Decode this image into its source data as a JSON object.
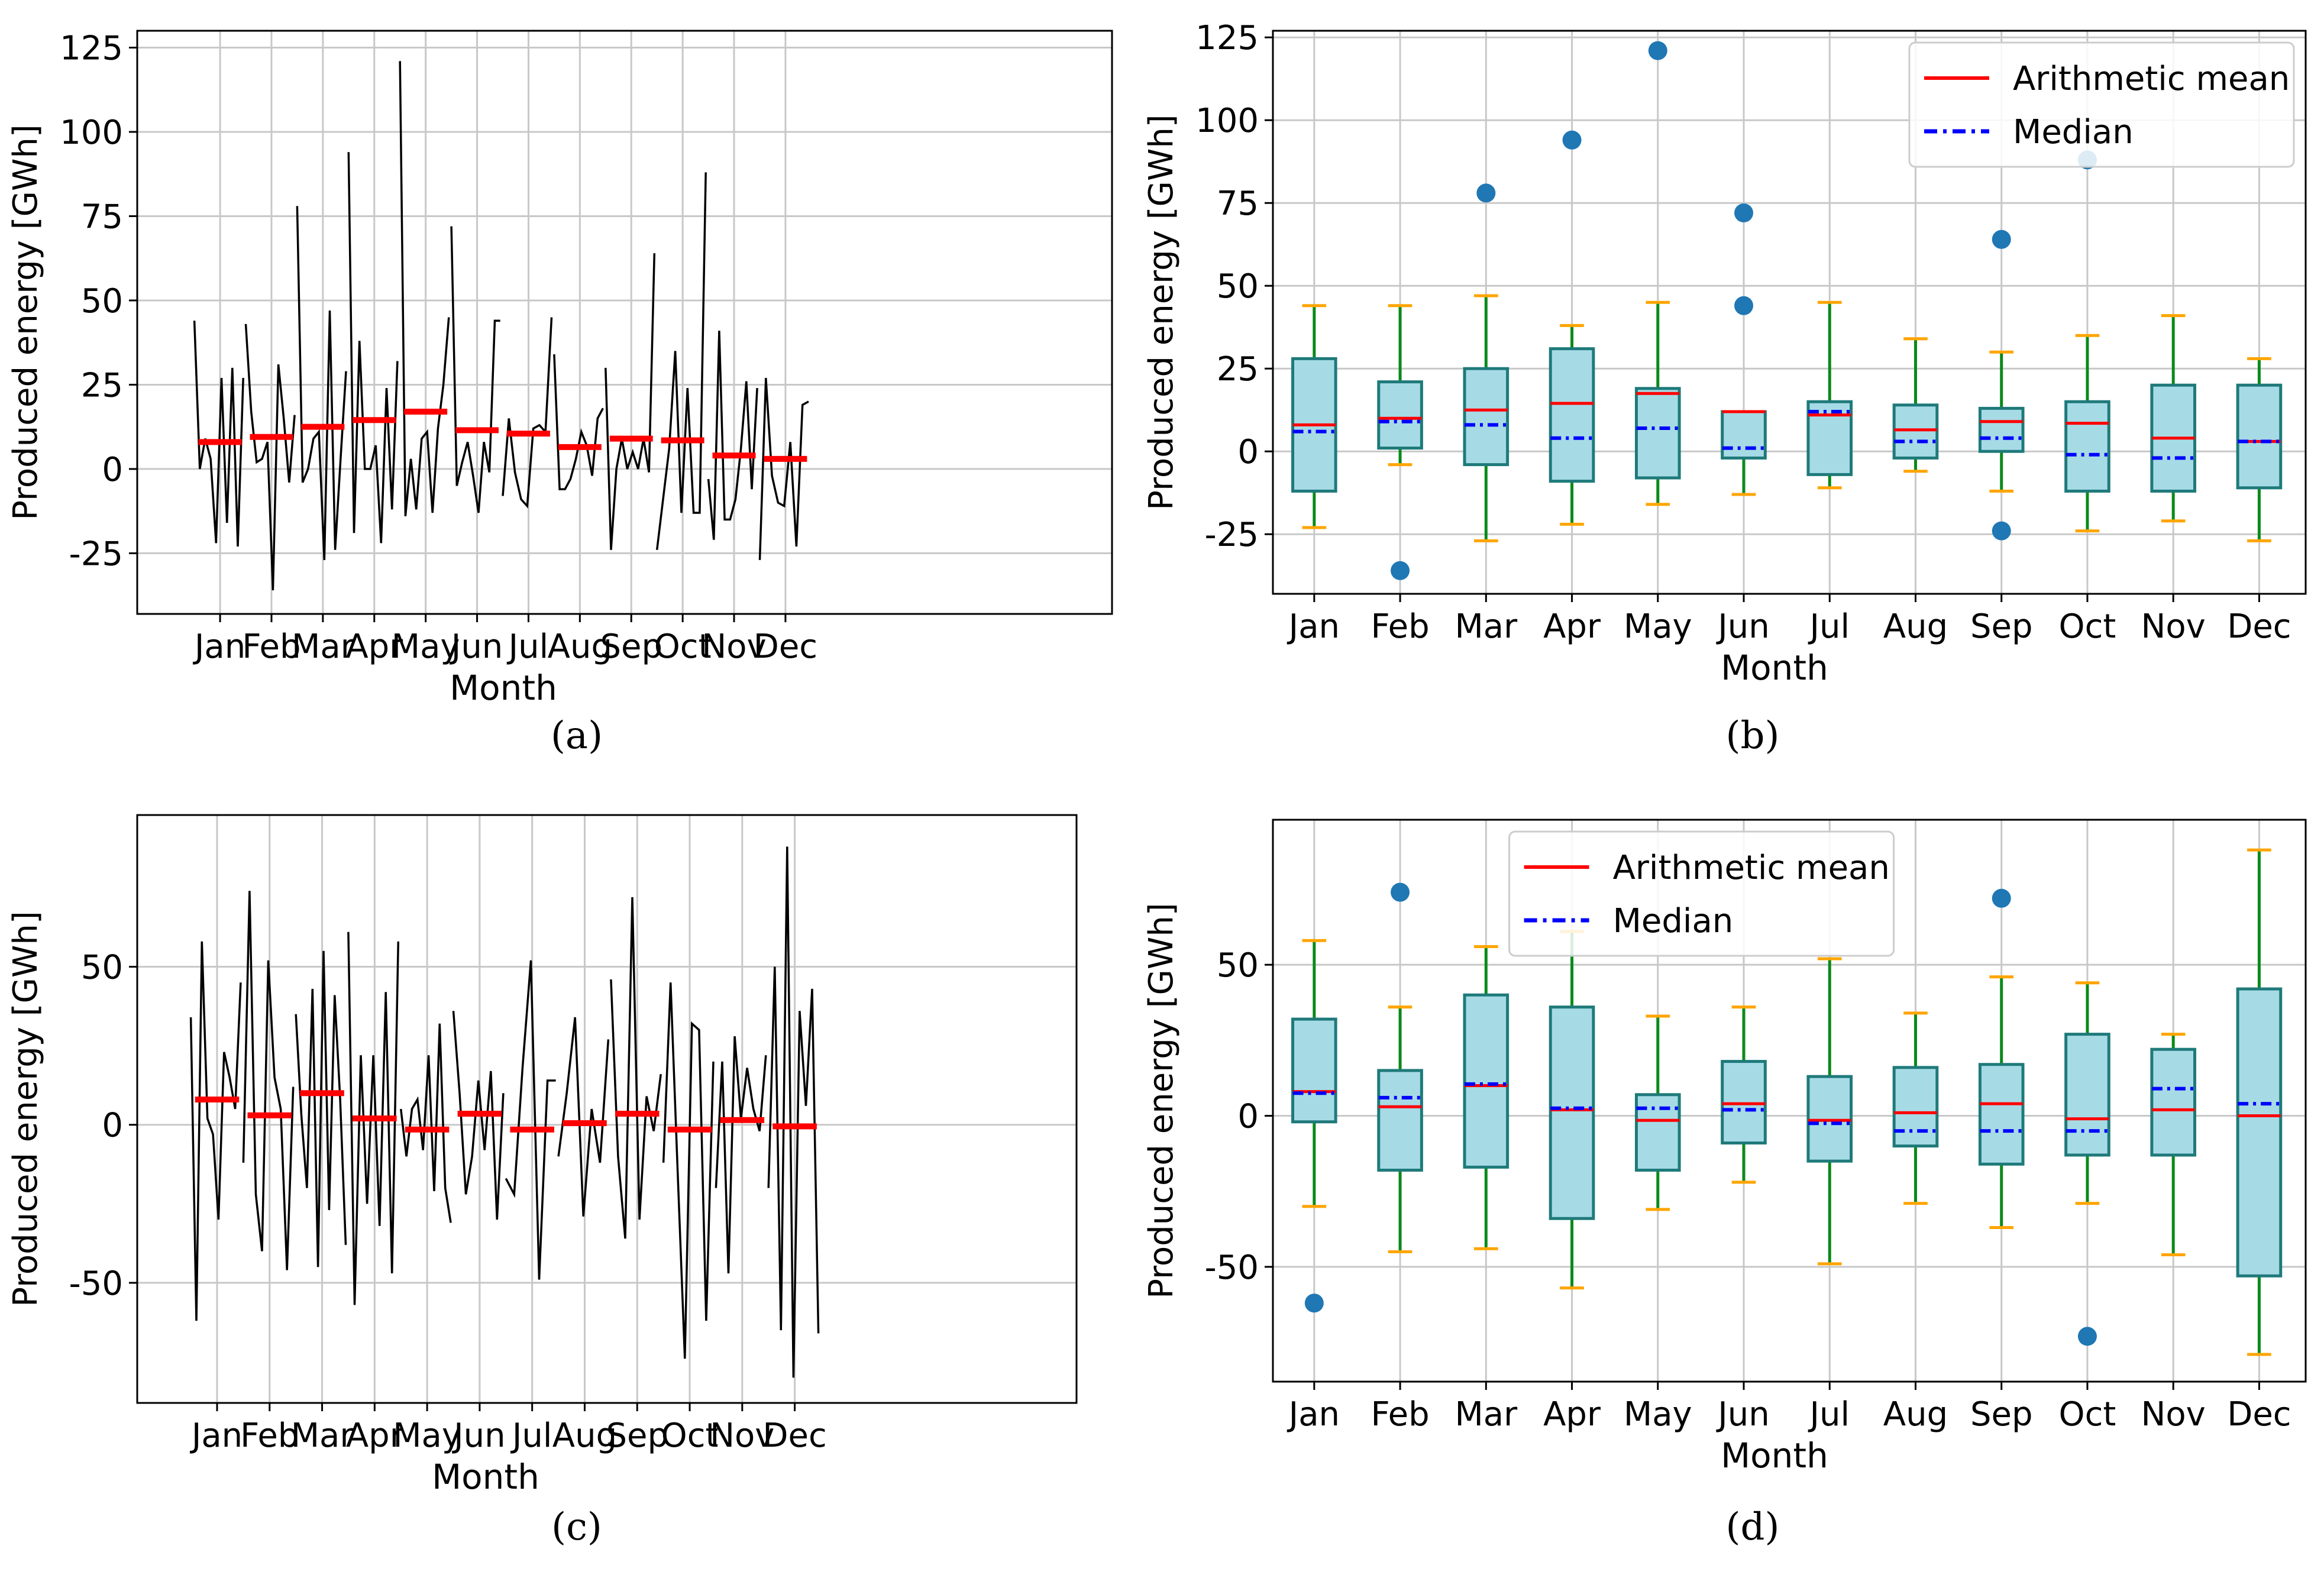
{
  "colors": {
    "series_line": "#000000",
    "mean": "#ff0000",
    "median": "#0000ff",
    "box_fill": "#a6dbe6",
    "box_edge": "#1f7a7a",
    "whisker": "#0a8a1a",
    "cap": "#ffa500",
    "outlier": "#1f77b4",
    "grid": "#c8c8c8"
  },
  "chart_data": [
    {
      "panel": "(a)",
      "type": "line",
      "xlabel": "Month",
      "ylabel": "Produced energy [GWh]",
      "ylim": [
        -43,
        130
      ],
      "yticks": [
        -25,
        0,
        25,
        50,
        75,
        100,
        125
      ],
      "categories": [
        "Jan",
        "Feb",
        "Mar",
        "Apr",
        "May",
        "Jun",
        "Jul",
        "Aug",
        "Sep",
        "Oct",
        "Nov",
        "Dec"
      ],
      "monthly_series": [
        [
          44,
          0,
          9,
          3,
          -22,
          27,
          -16,
          30,
          -23,
          27
        ],
        [
          43,
          17,
          2,
          3,
          8,
          -36,
          31,
          15,
          -4,
          16
        ],
        [
          78,
          -4,
          0,
          9,
          11,
          -27,
          47,
          -24,
          3,
          29
        ],
        [
          94,
          -19,
          38,
          0,
          0,
          7,
          -22,
          24,
          -12,
          32
        ],
        [
          121,
          -14,
          3,
          -12,
          9,
          11,
          -13,
          12,
          25,
          45
        ],
        [
          72,
          -5,
          2,
          8,
          -2,
          -13,
          8,
          -1,
          44,
          44
        ],
        [
          -8,
          15,
          -1,
          -9,
          -11,
          12,
          13,
          11,
          45
        ],
        [
          34,
          -6,
          -6,
          -3,
          3,
          11,
          7,
          -2,
          15,
          18
        ],
        [
          30,
          -24,
          0,
          9,
          0,
          5,
          0,
          9,
          -1,
          64
        ],
        [
          -24,
          -9,
          6,
          35,
          -13,
          24,
          -13,
          -13,
          88
        ],
        [
          -3,
          -21,
          41,
          -15,
          -15,
          -9,
          6,
          26,
          -6,
          24
        ],
        [
          -27,
          27,
          -2,
          -10,
          -11,
          8,
          -23,
          19,
          20
        ]
      ],
      "means": [
        8,
        9.5,
        12.5,
        14.5,
        17,
        11.5,
        10.5,
        6.5,
        9,
        8.5,
        4,
        3
      ]
    },
    {
      "panel": "(b)",
      "type": "box",
      "xlabel": "Month",
      "ylabel": "Produced energy [GWh]",
      "ylim": [
        -43,
        127
      ],
      "yticks": [
        -25,
        0,
        25,
        50,
        75,
        100,
        125
      ],
      "categories": [
        "Jan",
        "Feb",
        "Mar",
        "Apr",
        "May",
        "Jun",
        "Jul",
        "Aug",
        "Sep",
        "Oct",
        "Nov",
        "Dec"
      ],
      "legend": [
        "Arithmetic mean",
        "Median"
      ],
      "legend_position": "top-right",
      "boxes": [
        {
          "q1": -12,
          "q3": 28,
          "median": 6,
          "mean": 8,
          "lo": -23,
          "hi": 44,
          "outliers": []
        },
        {
          "q1": 1,
          "q3": 21,
          "median": 9,
          "mean": 10,
          "lo": -4,
          "hi": 44,
          "outliers": [
            -36
          ]
        },
        {
          "q1": -4,
          "q3": 25,
          "median": 8,
          "mean": 12.5,
          "lo": -27,
          "hi": 47,
          "outliers": [
            78
          ]
        },
        {
          "q1": -9,
          "q3": 31,
          "median": 4,
          "mean": 14.5,
          "lo": -22,
          "hi": 38,
          "outliers": [
            94
          ]
        },
        {
          "q1": -8,
          "q3": 19,
          "median": 7,
          "mean": 17.5,
          "lo": -16,
          "hi": 45,
          "outliers": [
            121
          ]
        },
        {
          "q1": -2,
          "q3": 12,
          "median": 1,
          "mean": 12,
          "lo": -13,
          "hi": 12,
          "outliers": [
            72,
            44
          ]
        },
        {
          "q1": -7,
          "q3": 15,
          "median": 12,
          "mean": 11,
          "lo": -11,
          "hi": 45,
          "outliers": []
        },
        {
          "q1": -2,
          "q3": 14,
          "median": 3,
          "mean": 6.5,
          "lo": -6,
          "hi": 34,
          "outliers": []
        },
        {
          "q1": 0,
          "q3": 13,
          "median": 4,
          "mean": 9,
          "lo": -12,
          "hi": 30,
          "outliers": [
            64,
            -24
          ]
        },
        {
          "q1": -12,
          "q3": 15,
          "median": -1,
          "mean": 8.5,
          "lo": -24,
          "hi": 35,
          "outliers": [
            88
          ]
        },
        {
          "q1": -12,
          "q3": 20,
          "median": -2,
          "mean": 4,
          "lo": -21,
          "hi": 41,
          "outliers": []
        },
        {
          "q1": -11,
          "q3": 20,
          "median": 3,
          "mean": 3,
          "lo": -27,
          "hi": 28,
          "outliers": []
        }
      ]
    },
    {
      "panel": "(c)",
      "type": "line",
      "xlabel": "Month",
      "ylabel": "Produced energy [GWh]",
      "ylim": [
        -88,
        98
      ],
      "yticks": [
        -50,
        0,
        50
      ],
      "categories": [
        "Jan",
        "Feb",
        "Mar",
        "Apr",
        "May",
        "Jun",
        "Jul",
        "Aug",
        "Sep",
        "Oct",
        "Nov",
        "Dec"
      ],
      "monthly_series": [
        [
          34,
          -62,
          58,
          2,
          -3,
          -30,
          23,
          15,
          5,
          45
        ],
        [
          -12,
          74,
          -22,
          -40,
          52,
          15,
          5,
          -46,
          12
        ],
        [
          35,
          3,
          -20,
          43,
          -45,
          55,
          -27,
          41,
          8,
          -38
        ],
        [
          61,
          -57,
          22,
          -25,
          22,
          -32,
          42,
          -47,
          58
        ],
        [
          5,
          -10,
          5,
          8,
          -8,
          22,
          -21,
          32,
          -20,
          -31
        ],
        [
          36,
          10,
          -22,
          -10,
          14,
          -8,
          17,
          -30,
          10
        ],
        [
          -17,
          -22,
          18,
          52,
          -49,
          14,
          14
        ],
        [
          -10,
          10,
          34,
          -29,
          5,
          -12,
          27
        ],
        [
          46,
          -10,
          -36,
          72,
          -30,
          9,
          -2,
          16
        ],
        [
          -12,
          45,
          -15,
          -74,
          32,
          30,
          -62,
          20
        ],
        [
          -20,
          20,
          -47,
          28,
          2,
          18,
          5,
          -2,
          22
        ],
        [
          -20,
          50,
          -65,
          88,
          -80,
          36,
          6,
          43,
          -66
        ]
      ],
      "means": [
        8,
        3,
        10,
        2,
        -1.5,
        3.5,
        -1.5,
        0.5,
        3.5,
        -1.5,
        1.5,
        -0.5
      ]
    },
    {
      "panel": "(d)",
      "type": "box",
      "xlabel": "Month",
      "ylabel": "Produced energy [GWh]",
      "ylim": [
        -88,
        98
      ],
      "yticks": [
        -50,
        0,
        50
      ],
      "categories": [
        "Jan",
        "Feb",
        "Mar",
        "Apr",
        "May",
        "Jun",
        "Jul",
        "Aug",
        "Sep",
        "Oct",
        "Nov",
        "Dec"
      ],
      "legend": [
        "Arithmetic mean",
        "Median"
      ],
      "legend_position": "top-center",
      "boxes": [
        {
          "q1": -2,
          "q3": 32,
          "median": 7.5,
          "mean": 8,
          "lo": -30,
          "hi": 58,
          "outliers": [
            -62
          ]
        },
        {
          "q1": -18,
          "q3": 15,
          "median": 6,
          "mean": 3,
          "lo": -45,
          "hi": 36,
          "outliers": [
            74
          ]
        },
        {
          "q1": -17,
          "q3": 40,
          "median": 10.5,
          "mean": 10,
          "lo": -44,
          "hi": 56,
          "outliers": []
        },
        {
          "q1": -34,
          "q3": 36,
          "median": 2.5,
          "mean": 2,
          "lo": -57,
          "hi": 61,
          "outliers": []
        },
        {
          "q1": -18,
          "q3": 7,
          "median": 2.5,
          "mean": -1.5,
          "lo": -31,
          "hi": 33,
          "outliers": []
        },
        {
          "q1": -9,
          "q3": 18,
          "median": 2,
          "mean": 4,
          "lo": -22,
          "hi": 36,
          "outliers": []
        },
        {
          "q1": -15,
          "q3": 13,
          "median": -2.5,
          "mean": -1.5,
          "lo": -49,
          "hi": 52,
          "outliers": []
        },
        {
          "q1": -10,
          "q3": 16,
          "median": -5,
          "mean": 1,
          "lo": -29,
          "hi": 34,
          "outliers": []
        },
        {
          "q1": -16,
          "q3": 17,
          "median": -5,
          "mean": 4,
          "lo": -37,
          "hi": 46,
          "outliers": [
            72
          ]
        },
        {
          "q1": -13,
          "q3": 27,
          "median": -5,
          "mean": -1,
          "lo": -29,
          "hi": 44,
          "outliers": [
            -73
          ]
        },
        {
          "q1": -13,
          "q3": 22,
          "median": 9,
          "mean": 2,
          "lo": -46,
          "hi": 27,
          "outliers": []
        },
        {
          "q1": -53,
          "q3": 42,
          "median": 4,
          "mean": 0,
          "lo": -79,
          "hi": 88,
          "outliers": []
        }
      ]
    }
  ]
}
